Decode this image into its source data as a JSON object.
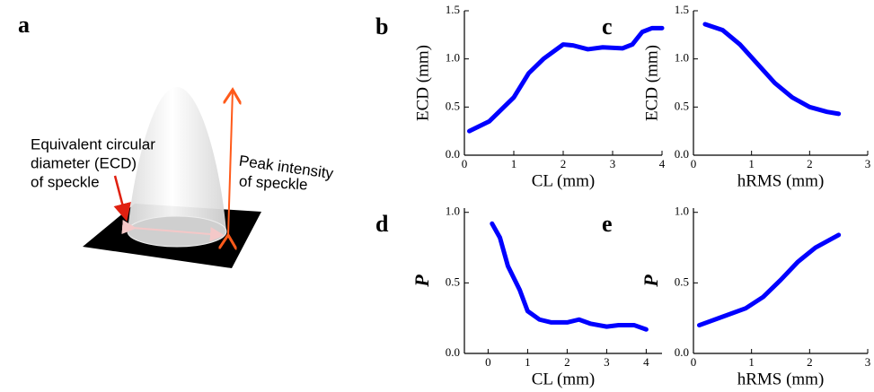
{
  "panel_a": {
    "label": "a",
    "annotations": [
      {
        "lines": [
          "Equivalent circular",
          "diameter (ECD)",
          "of speckle"
        ]
      },
      {
        "lines": [
          "Peak intensity",
          "of speckle"
        ]
      }
    ]
  },
  "chart_data": [
    {
      "type": "line",
      "label": "b",
      "x_label": "CL (mm)",
      "y_label": "ECD (mm)",
      "color": "#0000ff",
      "x": [
        0.1,
        0.5,
        1.0,
        1.3,
        1.6,
        2.0,
        2.2,
        2.5,
        2.8,
        3.2,
        3.4,
        3.6,
        3.8,
        4.0
      ],
      "values": [
        0.25,
        0.35,
        0.6,
        0.85,
        1.0,
        1.15,
        1.14,
        1.1,
        1.12,
        1.11,
        1.15,
        1.28,
        1.32,
        1.32
      ],
      "xlim": [
        0,
        4
      ],
      "ylim": [
        0,
        1.5
      ],
      "xticks": [
        0,
        1,
        2,
        3,
        4
      ],
      "yticks": [
        {
          "value": 0,
          "label": "0.0"
        },
        {
          "value": 0.5,
          "label": "0.5"
        },
        {
          "value": 1,
          "label": "1.0"
        },
        {
          "value": 1.5,
          "label": "1.5"
        }
      ]
    },
    {
      "type": "line",
      "label": "c",
      "x_label": "hRMS (mm)",
      "y_label": "ECD (mm)",
      "color": "#0000ff",
      "x": [
        0.2,
        0.5,
        0.8,
        1.1,
        1.4,
        1.7,
        2.0,
        2.3,
        2.5
      ],
      "values": [
        1.36,
        1.3,
        1.15,
        0.95,
        0.75,
        0.6,
        0.5,
        0.45,
        0.43
      ],
      "xlim": [
        0,
        3
      ],
      "ylim": [
        0,
        1.5
      ],
      "xticks": [
        0,
        1,
        2,
        3
      ],
      "yticks": [
        {
          "value": 0,
          "label": "0.0"
        },
        {
          "value": 0.5,
          "label": "0.5"
        },
        {
          "value": 1,
          "label": "1.0"
        },
        {
          "value": 1.5,
          "label": "1.5"
        }
      ]
    },
    {
      "type": "line",
      "label": "d",
      "x_label": "CL (mm)",
      "y_label": "P",
      "color": "#0000ff",
      "x": [
        0.1,
        0.3,
        0.5,
        0.8,
        1.0,
        1.3,
        1.6,
        2.0,
        2.3,
        2.6,
        3.0,
        3.3,
        3.7,
        4.0
      ],
      "values": [
        0.92,
        0.82,
        0.62,
        0.45,
        0.3,
        0.24,
        0.22,
        0.22,
        0.24,
        0.21,
        0.19,
        0.2,
        0.2,
        0.17
      ],
      "xlim": [
        -0.6,
        4.4
      ],
      "ylim": [
        0,
        1.03
      ],
      "xticks": [
        0,
        1,
        2,
        3,
        4
      ],
      "yticks": [
        {
          "value": 0,
          "label": "0.0"
        },
        {
          "value": 0.5,
          "label": "0.5"
        },
        {
          "value": 1,
          "label": "1.0"
        }
      ]
    },
    {
      "type": "line",
      "label": "e",
      "x_label": "hRMS (mm)",
      "y_label": "P",
      "color": "#0000ff",
      "x": [
        0.1,
        0.5,
        0.9,
        1.2,
        1.5,
        1.8,
        2.1,
        2.5
      ],
      "values": [
        0.2,
        0.26,
        0.32,
        0.4,
        0.52,
        0.65,
        0.75,
        0.84
      ],
      "xlim": [
        0,
        3
      ],
      "ylim": [
        0,
        1.03
      ],
      "xticks": [
        0,
        1,
        2,
        3
      ],
      "yticks": [
        {
          "value": 0,
          "label": "0.0"
        },
        {
          "value": 0.5,
          "label": "0.5"
        },
        {
          "value": 1,
          "label": "1.0"
        }
      ]
    }
  ]
}
